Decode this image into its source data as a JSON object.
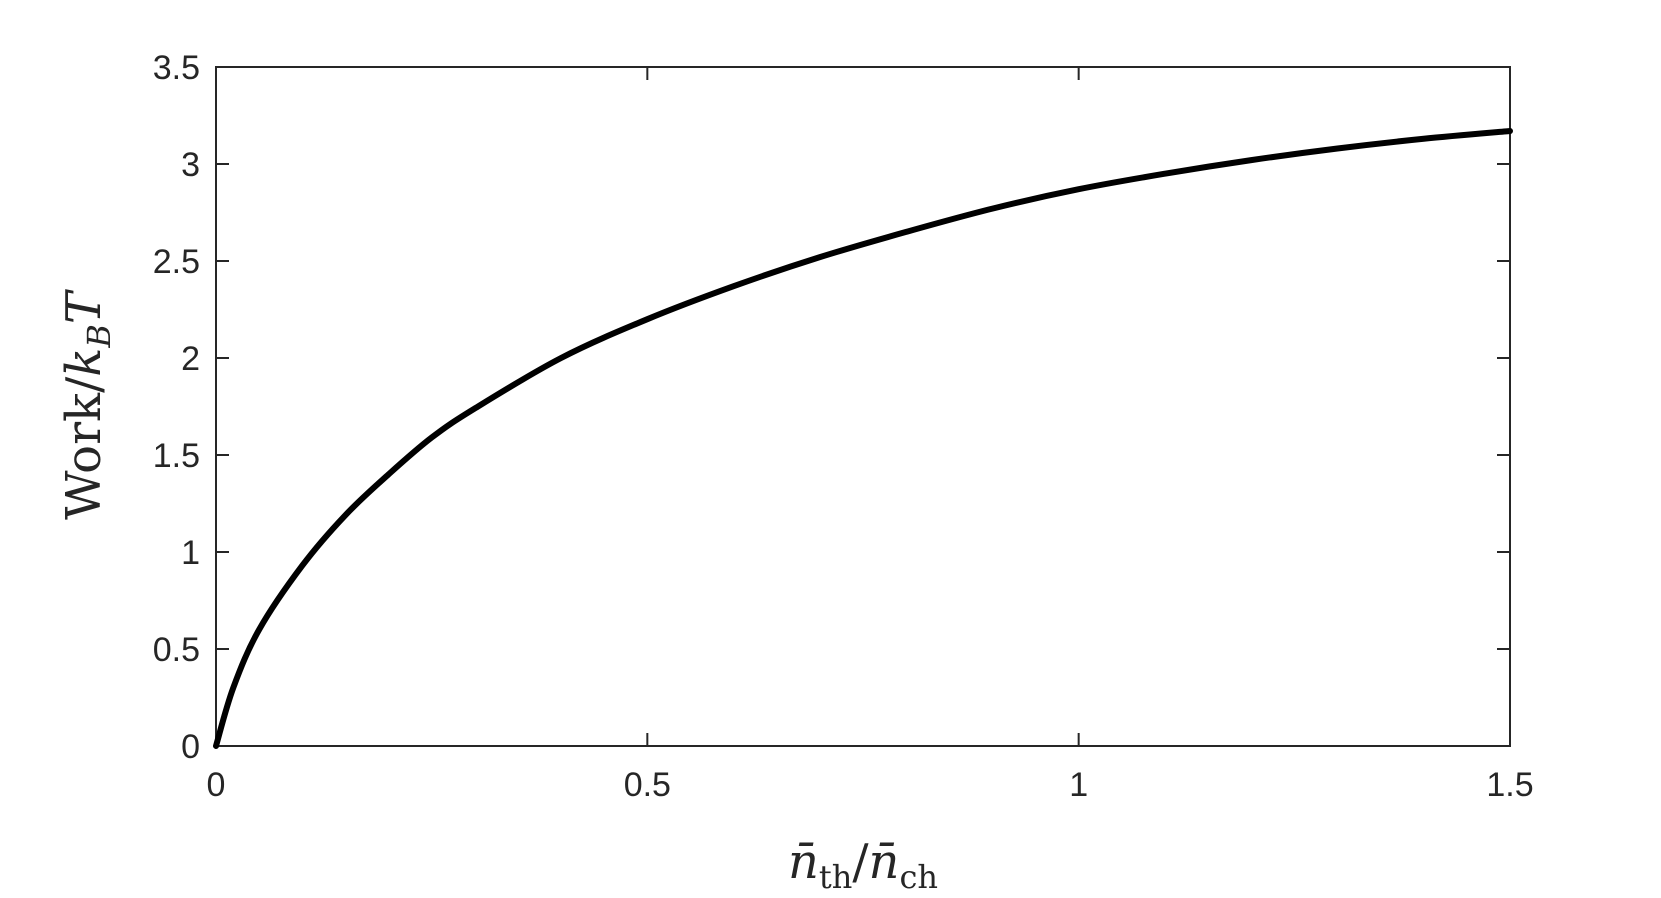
{
  "chart_data": {
    "type": "line",
    "xlabel": {
      "main": "n̄",
      "sub": "th",
      "sep": "/",
      "main2": "n̄",
      "sub2": "ch"
    },
    "ylabel": {
      "prefix": "Work",
      "sep": "/",
      "k": "k",
      "sub": "B",
      "T": "T"
    },
    "xlim": [
      0,
      1.5
    ],
    "ylim": [
      0,
      3.5
    ],
    "x_ticks": [
      0,
      0.5,
      1,
      1.5
    ],
    "x_tick_labels": [
      "0",
      "0.5",
      "1",
      "1.5"
    ],
    "y_ticks": [
      0,
      0.5,
      1,
      1.5,
      2,
      2.5,
      3,
      3.5
    ],
    "y_tick_labels": [
      "0",
      "0.5",
      "1",
      "1.5",
      "2",
      "2.5",
      "3",
      "3.5"
    ],
    "grid": false,
    "series": [
      {
        "color": "#000000",
        "x": [
          0,
          0.02,
          0.05,
          0.1,
          0.15,
          0.2,
          0.25,
          0.3,
          0.4,
          0.5,
          0.6,
          0.7,
          0.8,
          0.9,
          1.0,
          1.1,
          1.2,
          1.3,
          1.4,
          1.5
        ],
        "y": [
          0,
          0.3,
          0.6,
          0.93,
          1.19,
          1.4,
          1.59,
          1.74,
          2.0,
          2.2,
          2.37,
          2.52,
          2.65,
          2.77,
          2.87,
          2.95,
          3.02,
          3.08,
          3.13,
          3.17
        ]
      }
    ]
  }
}
